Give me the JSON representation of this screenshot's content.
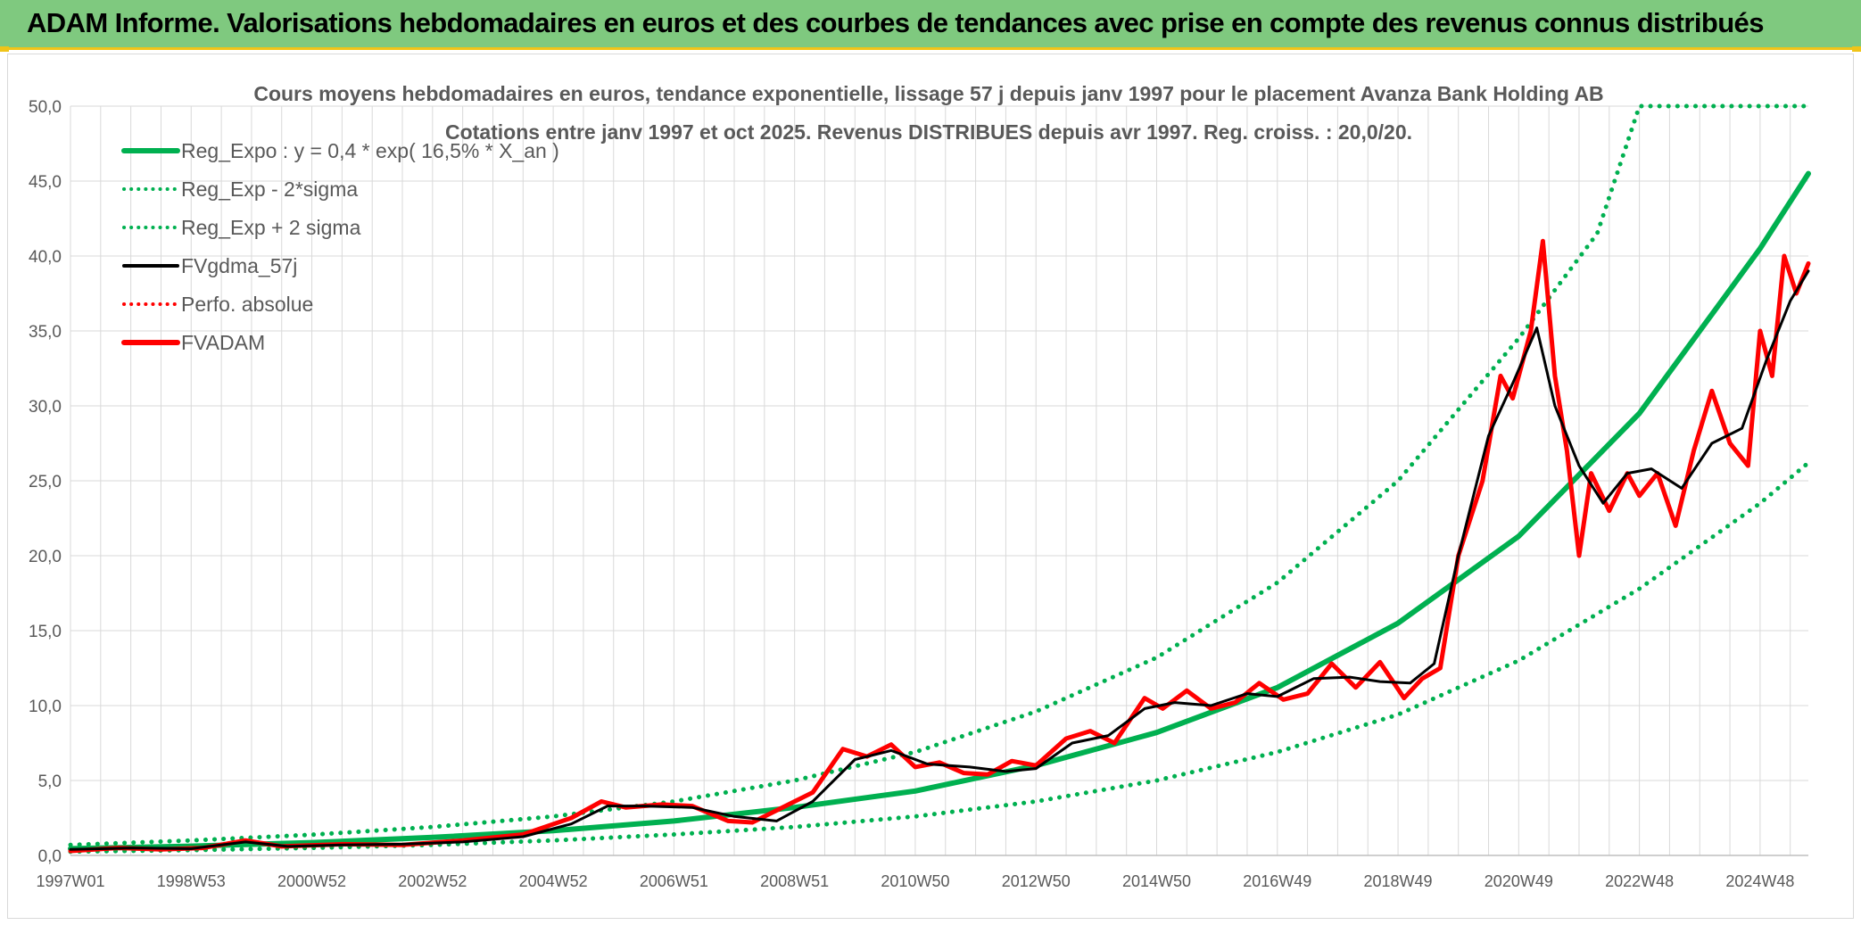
{
  "banner": {
    "title": "ADAM Informe. Valorisations hebdomadaires en euros et des courbes de tendances avec prise en compte des revenus connus distribués"
  },
  "colors": {
    "banner_bg": "#7fc97f",
    "accent_yellow": "#f0c419",
    "reg_expo": "#00b050",
    "fvgdma": "#000000",
    "fvadam": "#ff0000",
    "grid": "#d9d9d9"
  },
  "chart_data": {
    "type": "line",
    "title_line1": "Cours moyens hebdomadaires en euros, tendance exponentielle, lissage 57 j depuis janv 1997 pour le placement Avanza Bank Holding AB",
    "title_line2": "Cotations entre janv 1997 et oct 2025. Revenus DISTRIBUES depuis avr 1997. Reg. croiss. : 20,0/20.",
    "ylim": [
      0,
      50
    ],
    "y_ticks": [
      "0,0",
      "5,0",
      "10,0",
      "15,0",
      "20,0",
      "25,0",
      "30,0",
      "35,0",
      "40,0",
      "45,0",
      "50,0"
    ],
    "x_range": [
      1997.0,
      2025.8
    ],
    "x_ticks": [
      {
        "label": "1997W01",
        "year": 1997.0
      },
      {
        "label": "1998W53",
        "year": 1999.0
      },
      {
        "label": "2000W52",
        "year": 2001.0
      },
      {
        "label": "2002W52",
        "year": 2003.0
      },
      {
        "label": "2004W52",
        "year": 2005.0
      },
      {
        "label": "2006W51",
        "year": 2007.0
      },
      {
        "label": "2008W51",
        "year": 2009.0
      },
      {
        "label": "2010W50",
        "year": 2011.0
      },
      {
        "label": "2012W50",
        "year": 2013.0
      },
      {
        "label": "2014W50",
        "year": 2015.0
      },
      {
        "label": "2016W49",
        "year": 2017.0
      },
      {
        "label": "2018W49",
        "year": 2019.0
      },
      {
        "label": "2020W49",
        "year": 2021.0
      },
      {
        "label": "2022W48",
        "year": 2023.0
      },
      {
        "label": "2024W48",
        "year": 2025.0
      }
    ],
    "legend_position": "top-left",
    "legend": [
      {
        "name": "Reg_Expo : y = 0,4 * exp( 16,5% *  X_an )",
        "style": "solid-thick",
        "color": "#00b050"
      },
      {
        "name": "Reg_Exp - 2*sigma",
        "style": "dotted",
        "color": "#00b050"
      },
      {
        "name": "Reg_Exp + 2 sigma",
        "style": "dotted",
        "color": "#00b050"
      },
      {
        "name": "FVgdma_57j",
        "style": "solid",
        "color": "#000000"
      },
      {
        "name": "Perfo. absolue",
        "style": "dotted",
        "color": "#ff0000"
      },
      {
        "name": "FVADAM",
        "style": "solid-thick",
        "color": "#ff0000"
      }
    ],
    "series": [
      {
        "name": "Reg_Expo : y = 0,4 * exp( 16,5% *  X_an )",
        "x": [
          1997.0,
          1999.0,
          2001.0,
          2003.0,
          2005.0,
          2007.0,
          2009.0,
          2011.0,
          2013.0,
          2015.0,
          2017.0,
          2019.0,
          2021.0,
          2023.0,
          2025.0,
          2025.8
        ],
        "y": [
          0.45,
          0.62,
          0.86,
          1.2,
          1.65,
          2.3,
          3.2,
          4.3,
          6.0,
          8.2,
          11.2,
          15.5,
          21.3,
          29.5,
          40.5,
          45.5
        ]
      },
      {
        "name": "Reg_Exp - 2*sigma",
        "x": [
          1997.0,
          1999.0,
          2001.0,
          2003.0,
          2005.0,
          2007.0,
          2009.0,
          2011.0,
          2013.0,
          2015.0,
          2017.0,
          2019.0,
          2021.0,
          2023.0,
          2025.0,
          2025.8
        ],
        "y": [
          0.25,
          0.35,
          0.5,
          0.7,
          1.0,
          1.4,
          1.9,
          2.6,
          3.6,
          5.0,
          6.9,
          9.4,
          13.0,
          17.8,
          23.5,
          26.2
        ]
      },
      {
        "name": "Reg_Exp + 2 sigma",
        "x": [
          1997.0,
          1999.0,
          2001.0,
          2003.0,
          2005.0,
          2007.0,
          2009.0,
          2011.0,
          2013.0,
          2015.0,
          2017.0,
          2019.0,
          2021.0,
          2022.3,
          2023.0,
          2025.8
        ],
        "y": [
          0.7,
          1.0,
          1.38,
          1.9,
          2.6,
          3.6,
          5.0,
          6.9,
          9.6,
          13.2,
          18.2,
          25.0,
          34.5,
          41.5,
          50.0,
          50.0
        ]
      },
      {
        "name": "FVgdma_57j",
        "x": [
          1997.0,
          1998.0,
          1999.0,
          1999.9,
          2000.6,
          2001.5,
          2002.5,
          2003.5,
          2004.5,
          2005.3,
          2005.9,
          2006.5,
          2007.3,
          2008.0,
          2008.7,
          2009.3,
          2010.0,
          2010.6,
          2011.2,
          2011.9,
          2012.5,
          2013.0,
          2013.6,
          2014.2,
          2014.8,
          2015.3,
          2015.9,
          2016.5,
          2017.0,
          2017.6,
          2018.2,
          2018.7,
          2019.2,
          2019.6,
          2020.0,
          2020.5,
          2020.9,
          2021.3,
          2021.6,
          2022.0,
          2022.4,
          2022.8,
          2023.2,
          2023.7,
          2024.2,
          2024.7,
          2025.1,
          2025.5,
          2025.8
        ],
        "y": [
          0.4,
          0.5,
          0.45,
          0.9,
          0.6,
          0.7,
          0.75,
          0.9,
          1.25,
          2.1,
          3.3,
          3.3,
          3.2,
          2.6,
          2.3,
          3.6,
          6.4,
          7.0,
          6.1,
          5.9,
          5.6,
          5.8,
          7.5,
          8.0,
          9.8,
          10.2,
          10.0,
          10.8,
          10.6,
          11.8,
          11.9,
          11.6,
          11.5,
          12.8,
          20.0,
          28.0,
          31.5,
          35.2,
          30.0,
          26.0,
          23.5,
          25.5,
          25.8,
          24.5,
          27.5,
          28.5,
          33.0,
          37.0,
          39.0
        ]
      },
      {
        "name": "FVADAM",
        "x": [
          1997.0,
          1997.8,
          1998.5,
          1999.2,
          1999.9,
          2000.5,
          2001.5,
          2002.5,
          2003.5,
          2004.5,
          2005.3,
          2005.8,
          2006.2,
          2006.8,
          2007.3,
          2007.9,
          2008.3,
          2008.8,
          2009.3,
          2009.8,
          2010.2,
          2010.6,
          2011.0,
          2011.4,
          2011.8,
          2012.2,
          2012.6,
          2013.0,
          2013.5,
          2013.9,
          2014.3,
          2014.8,
          2015.1,
          2015.5,
          2015.9,
          2016.3,
          2016.7,
          2017.1,
          2017.5,
          2017.9,
          2018.3,
          2018.7,
          2019.1,
          2019.4,
          2019.7,
          2020.0,
          2020.4,
          2020.7,
          2020.9,
          2021.2,
          2021.4,
          2021.6,
          2021.8,
          2022.0,
          2022.2,
          2022.5,
          2022.8,
          2023.0,
          2023.3,
          2023.6,
          2023.9,
          2024.2,
          2024.5,
          2024.8,
          2025.0,
          2025.2,
          2025.4,
          2025.6,
          2025.8
        ],
        "y": [
          0.3,
          0.5,
          0.4,
          0.5,
          1.0,
          0.6,
          0.75,
          0.7,
          1.0,
          1.4,
          2.5,
          3.6,
          3.2,
          3.4,
          3.3,
          2.3,
          2.2,
          3.2,
          4.2,
          7.1,
          6.6,
          7.4,
          5.9,
          6.2,
          5.5,
          5.4,
          6.3,
          6.0,
          7.8,
          8.3,
          7.5,
          10.5,
          9.8,
          11.0,
          9.8,
          10.2,
          11.5,
          10.4,
          10.8,
          12.8,
          11.2,
          12.9,
          10.5,
          11.8,
          12.5,
          20.0,
          25.0,
          32.0,
          30.5,
          35.0,
          41.0,
          32.0,
          27.0,
          20.0,
          25.5,
          23.0,
          25.5,
          24.0,
          25.5,
          22.0,
          27.0,
          31.0,
          27.5,
          26.0,
          35.0,
          32.0,
          40.0,
          37.5,
          39.5
        ]
      }
    ]
  }
}
